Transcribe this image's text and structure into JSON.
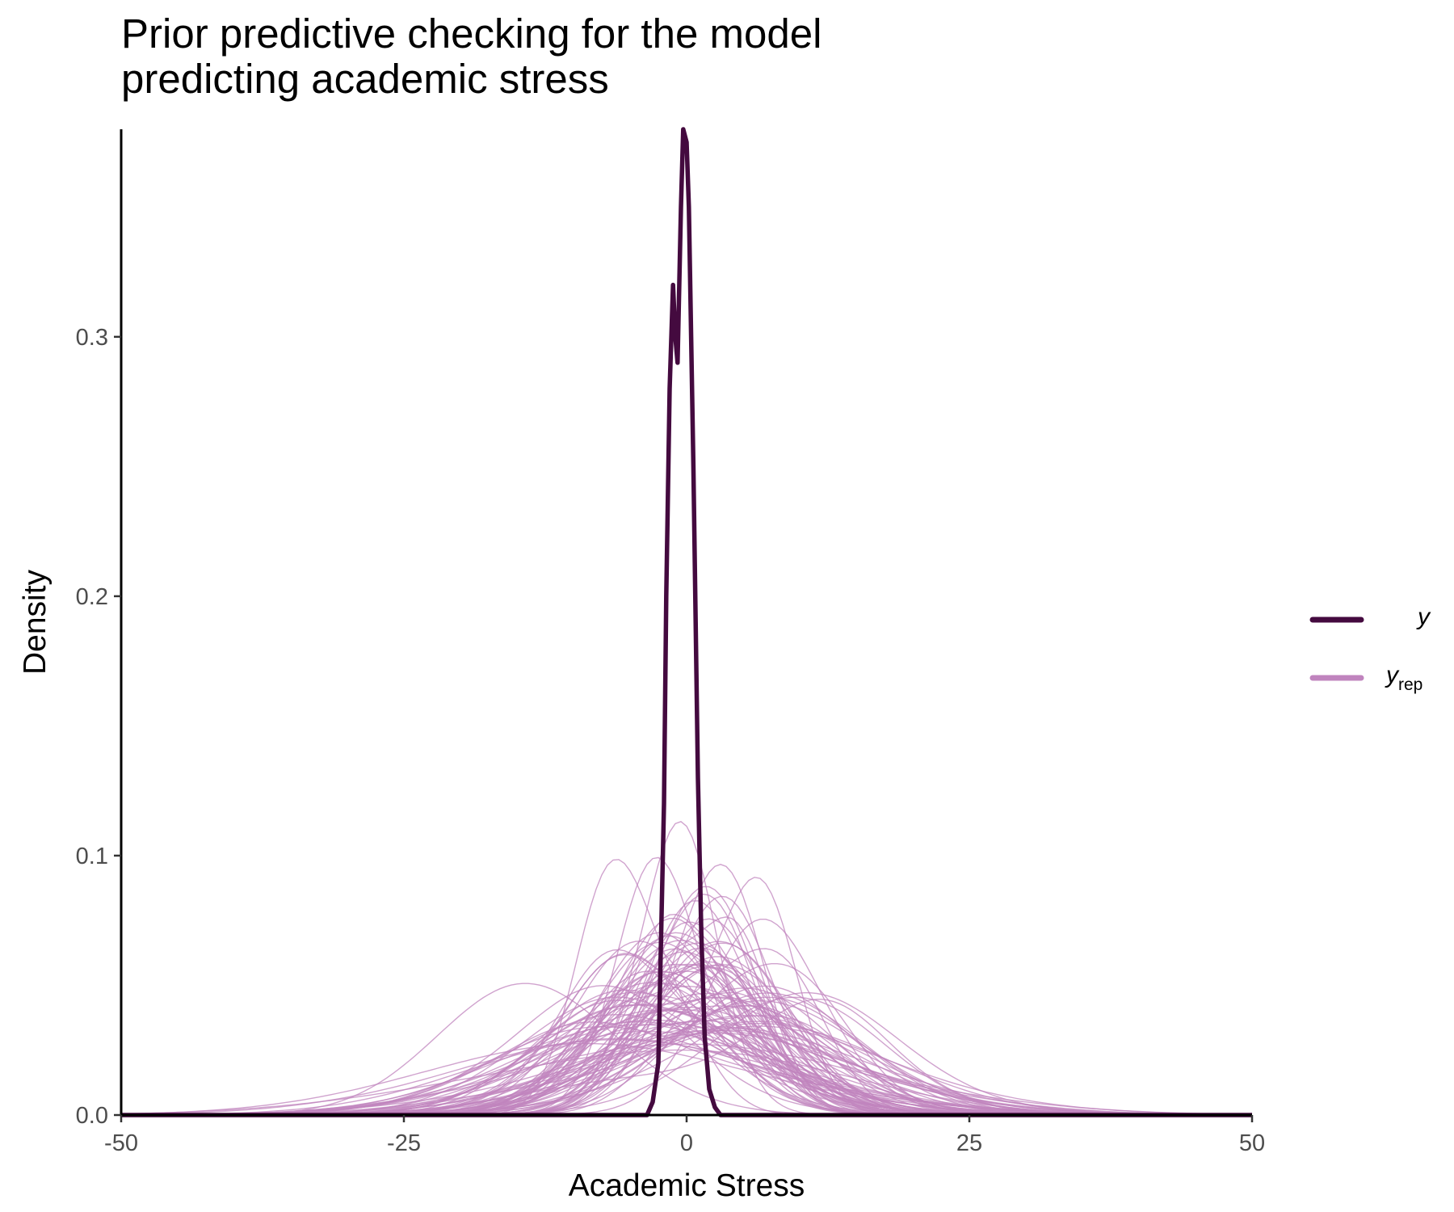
{
  "chart_data": {
    "type": "line",
    "title_lines": [
      "Prior predictive checking for the model",
      "predicting academic stress"
    ],
    "xlabel": "Academic Stress",
    "ylabel": "Density",
    "xlim": [
      -50,
      50
    ],
    "ylim": [
      0,
      0.38
    ],
    "xticks": [
      -50,
      -25,
      0,
      25,
      50
    ],
    "xtick_labels": [
      "-50",
      "-25",
      "0",
      "25",
      "50"
    ],
    "yticks": [
      0.0,
      0.1,
      0.2,
      0.3
    ],
    "ytick_labels": [
      "0.0",
      "0.1",
      "0.2",
      "0.3"
    ],
    "grid": false,
    "legend_position": "right",
    "colors": {
      "y": "#440a3f",
      "yrep": "#c084be",
      "axis": "#000000"
    },
    "legend": [
      {
        "key": "y",
        "label": "y",
        "subscript": ""
      },
      {
        "key": "yrep",
        "label": "y",
        "subscript": "rep"
      }
    ],
    "series": [
      {
        "key": "y",
        "x": [
          -3.5,
          -3.0,
          -2.5,
          -2.0,
          -1.8,
          -1.5,
          -1.2,
          -1.0,
          -0.8,
          -0.5,
          -0.3,
          0.0,
          0.2,
          0.4,
          0.6,
          0.8,
          1.0,
          1.3,
          1.6,
          2.0,
          2.5,
          3.0,
          3.5,
          4.0
        ],
        "y": [
          0.0,
          0.005,
          0.02,
          0.12,
          0.2,
          0.28,
          0.32,
          0.3,
          0.29,
          0.35,
          0.38,
          0.375,
          0.35,
          0.3,
          0.25,
          0.19,
          0.13,
          0.07,
          0.03,
          0.01,
          0.003,
          0.0,
          0.0,
          0.0
        ]
      }
    ],
    "yrep_draws": 100,
    "yrep_note": "Each draw is a density curve; peaks range from about 0.03 to 0.128"
  }
}
